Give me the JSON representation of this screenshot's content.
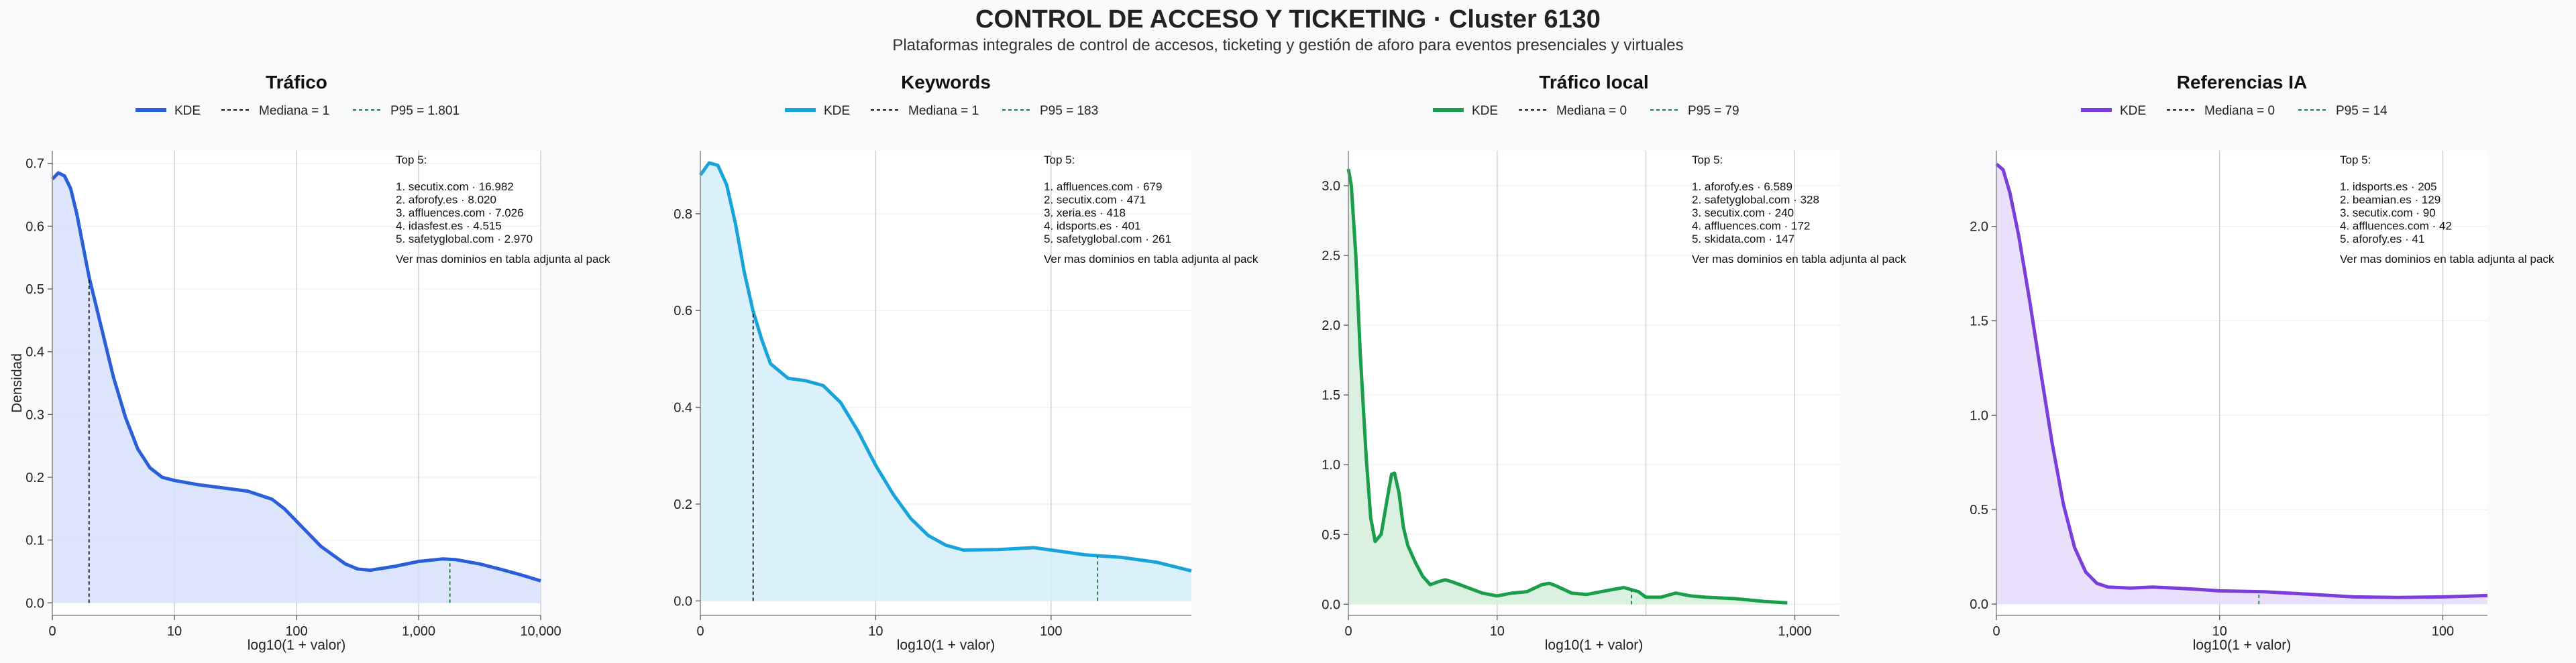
{
  "header": {
    "title": "CONTROL DE ACCESO Y TICKETING · Cluster 6130",
    "subtitle": "Plataformas integrales de control de accesos, ticketing y gestión de aforo para eventos presenciales y virtuales"
  },
  "common": {
    "ylabel": "Densidad",
    "xlabel": "log10(1 + valor)",
    "legend_kde": "KDE",
    "top_title": "Top 5:",
    "footer_note": "Ver mas dominios en tabla adjunta al pack"
  },
  "chart_data": [
    {
      "type": "area",
      "title": "Tráfico",
      "color": "#2b5fd9",
      "fill": "#d6e0fa",
      "median_label": "Mediana = 1",
      "p95_label": "P95 = 1.801",
      "median_x": 0.301,
      "p95_x": 3.256,
      "xlim": [
        0,
        4.0
      ],
      "ylim": [
        -0.02,
        0.72
      ],
      "xticks": [
        0,
        1,
        2,
        3,
        4
      ],
      "xtick_labels": [
        "0",
        "10",
        "100",
        "1,000",
        "10,000"
      ],
      "yticks": [
        0.0,
        0.1,
        0.2,
        0.3,
        0.4,
        0.5,
        0.6,
        0.7
      ],
      "ytick_labels": [
        "0.0",
        "0.1",
        "0.2",
        "0.3",
        "0.4",
        "0.5",
        "0.6",
        "0.7"
      ],
      "curve": [
        [
          0,
          0.675
        ],
        [
          0.05,
          0.685
        ],
        [
          0.1,
          0.68
        ],
        [
          0.15,
          0.66
        ],
        [
          0.2,
          0.62
        ],
        [
          0.25,
          0.57
        ],
        [
          0.3,
          0.52
        ],
        [
          0.4,
          0.44
        ],
        [
          0.5,
          0.36
        ],
        [
          0.6,
          0.295
        ],
        [
          0.7,
          0.245
        ],
        [
          0.8,
          0.215
        ],
        [
          0.9,
          0.2
        ],
        [
          1.0,
          0.195
        ],
        [
          1.2,
          0.188
        ],
        [
          1.4,
          0.183
        ],
        [
          1.6,
          0.178
        ],
        [
          1.8,
          0.165
        ],
        [
          1.9,
          0.15
        ],
        [
          2.0,
          0.13
        ],
        [
          2.2,
          0.09
        ],
        [
          2.4,
          0.062
        ],
        [
          2.5,
          0.054
        ],
        [
          2.6,
          0.052
        ],
        [
          2.8,
          0.058
        ],
        [
          3.0,
          0.066
        ],
        [
          3.2,
          0.07
        ],
        [
          3.3,
          0.069
        ],
        [
          3.5,
          0.062
        ],
        [
          3.7,
          0.052
        ],
        [
          3.85,
          0.044
        ],
        [
          4.0,
          0.035
        ]
      ],
      "top5": [
        "1. secutix.com · 16.982",
        "2. aforofy.es · 8.020",
        "3. affluences.com · 7.026",
        "4. idasfest.es · 4.515",
        "5. safetyglobal.com · 2.970"
      ]
    },
    {
      "type": "area",
      "title": "Keywords",
      "color": "#19a3db",
      "fill": "#d3eefa",
      "median_label": "Mediana = 1",
      "p95_label": "P95 = 183",
      "median_x": 0.301,
      "p95_x": 2.265,
      "xlim": [
        0,
        2.8
      ],
      "ylim": [
        -0.03,
        0.93
      ],
      "xticks": [
        0,
        1,
        2
      ],
      "xtick_labels": [
        "0",
        "10",
        "100"
      ],
      "yticks": [
        0.0,
        0.2,
        0.4,
        0.6,
        0.8
      ],
      "ytick_labels": [
        "0.0",
        "0.2",
        "0.4",
        "0.6",
        "0.8"
      ],
      "curve": [
        [
          0,
          0.88
        ],
        [
          0.05,
          0.905
        ],
        [
          0.1,
          0.9
        ],
        [
          0.15,
          0.86
        ],
        [
          0.2,
          0.78
        ],
        [
          0.25,
          0.68
        ],
        [
          0.3,
          0.6
        ],
        [
          0.35,
          0.54
        ],
        [
          0.4,
          0.49
        ],
        [
          0.5,
          0.46
        ],
        [
          0.6,
          0.455
        ],
        [
          0.7,
          0.445
        ],
        [
          0.8,
          0.41
        ],
        [
          0.9,
          0.35
        ],
        [
          1.0,
          0.28
        ],
        [
          1.1,
          0.22
        ],
        [
          1.2,
          0.17
        ],
        [
          1.3,
          0.135
        ],
        [
          1.4,
          0.115
        ],
        [
          1.5,
          0.105
        ],
        [
          1.7,
          0.106
        ],
        [
          1.9,
          0.11
        ],
        [
          2.0,
          0.105
        ],
        [
          2.2,
          0.095
        ],
        [
          2.4,
          0.09
        ],
        [
          2.6,
          0.08
        ],
        [
          2.8,
          0.062
        ]
      ],
      "top5": [
        "1. affluences.com · 679",
        "2. secutix.com · 471",
        "3. xeria.es · 418",
        "4. idsports.es · 401",
        "5. safetyglobal.com · 261"
      ]
    },
    {
      "type": "area",
      "title": "Tráfico local",
      "color": "#1a9e4b",
      "fill": "#d4efdc",
      "median_label": "Mediana = 0",
      "p95_label": "P95 = 79",
      "median_x": 0,
      "p95_x": 1.903,
      "xlim": [
        0,
        3.3
      ],
      "ylim": [
        -0.08,
        3.25
      ],
      "xticks": [
        0,
        1,
        3
      ],
      "xtick_labels": [
        "0",
        "10",
        "1,000"
      ],
      "extra_vgrid": [
        2
      ],
      "yticks": [
        0.0,
        0.5,
        1.0,
        1.5,
        2.0,
        2.5,
        3.0
      ],
      "ytick_labels": [
        "0.0",
        "0.5",
        "1.0",
        "1.5",
        "2.0",
        "2.5",
        "3.0"
      ],
      "curve": [
        [
          0,
          3.12
        ],
        [
          0.02,
          3.0
        ],
        [
          0.05,
          2.5
        ],
        [
          0.08,
          1.8
        ],
        [
          0.12,
          1.05
        ],
        [
          0.15,
          0.62
        ],
        [
          0.18,
          0.45
        ],
        [
          0.22,
          0.5
        ],
        [
          0.26,
          0.75
        ],
        [
          0.29,
          0.93
        ],
        [
          0.31,
          0.94
        ],
        [
          0.34,
          0.8
        ],
        [
          0.37,
          0.55
        ],
        [
          0.4,
          0.42
        ],
        [
          0.45,
          0.3
        ],
        [
          0.5,
          0.2
        ],
        [
          0.55,
          0.14
        ],
        [
          0.6,
          0.16
        ],
        [
          0.65,
          0.175
        ],
        [
          0.7,
          0.16
        ],
        [
          0.8,
          0.12
        ],
        [
          0.9,
          0.08
        ],
        [
          1.0,
          0.06
        ],
        [
          1.1,
          0.08
        ],
        [
          1.2,
          0.09
        ],
        [
          1.3,
          0.14
        ],
        [
          1.35,
          0.15
        ],
        [
          1.4,
          0.13
        ],
        [
          1.5,
          0.08
        ],
        [
          1.6,
          0.07
        ],
        [
          1.7,
          0.09
        ],
        [
          1.85,
          0.12
        ],
        [
          1.95,
          0.09
        ],
        [
          2.0,
          0.05
        ],
        [
          2.1,
          0.05
        ],
        [
          2.2,
          0.08
        ],
        [
          2.3,
          0.06
        ],
        [
          2.4,
          0.05
        ],
        [
          2.6,
          0.04
        ],
        [
          2.8,
          0.02
        ],
        [
          2.95,
          0.01
        ]
      ],
      "top5": [
        "1. aforofy.es · 6.589",
        "2. safetyglobal.com · 328",
        "3. secutix.com · 240",
        "4. affluences.com · 172",
        "5. skidata.com · 147"
      ]
    },
    {
      "type": "area",
      "title": "Referencias IA",
      "color": "#7a3fdb",
      "fill": "#e8dafa",
      "median_label": "Mediana = 0",
      "p95_label": "P95 = 14",
      "median_x": 0,
      "p95_x": 1.176,
      "xlim": [
        0,
        2.2
      ],
      "ylim": [
        -0.06,
        2.4
      ],
      "xticks": [
        0,
        1,
        2
      ],
      "xtick_labels": [
        "0",
        "10",
        "100"
      ],
      "yticks": [
        0.0,
        0.5,
        1.0,
        1.5,
        2.0
      ],
      "ytick_labels": [
        "0.0",
        "0.5",
        "1.0",
        "1.5",
        "2.0"
      ],
      "curve": [
        [
          0,
          2.33
        ],
        [
          0.03,
          2.3
        ],
        [
          0.06,
          2.18
        ],
        [
          0.1,
          1.95
        ],
        [
          0.15,
          1.6
        ],
        [
          0.2,
          1.22
        ],
        [
          0.25,
          0.85
        ],
        [
          0.3,
          0.53
        ],
        [
          0.35,
          0.3
        ],
        [
          0.4,
          0.17
        ],
        [
          0.45,
          0.11
        ],
        [
          0.5,
          0.09
        ],
        [
          0.6,
          0.085
        ],
        [
          0.7,
          0.09
        ],
        [
          0.8,
          0.085
        ],
        [
          0.9,
          0.078
        ],
        [
          1.0,
          0.07
        ],
        [
          1.2,
          0.065
        ],
        [
          1.4,
          0.052
        ],
        [
          1.6,
          0.038
        ],
        [
          1.8,
          0.035
        ],
        [
          2.0,
          0.038
        ],
        [
          2.2,
          0.045
        ]
      ],
      "top5": [
        "1. idsports.es · 205",
        "2. beamian.es · 129",
        "3. secutix.com · 90",
        "4. affluences.com · 42",
        "5. aforofy.es · 41"
      ]
    }
  ]
}
